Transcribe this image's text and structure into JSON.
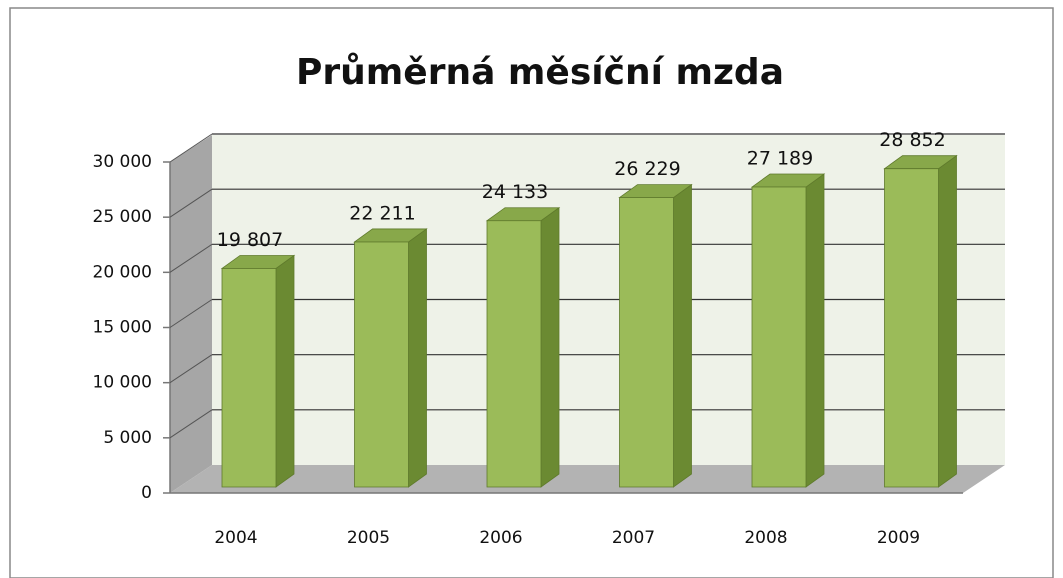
{
  "chart_data": {
    "type": "bar3d",
    "title": "Průměrná měsíční mzda",
    "categories": [
      "2004",
      "2005",
      "2006",
      "2007",
      "2008",
      "2009"
    ],
    "values": [
      19807,
      22211,
      24133,
      26229,
      27189,
      28852
    ],
    "value_labels": [
      "19 807",
      "22 211",
      "24 133",
      "26 229",
      "27 189",
      "28 852"
    ],
    "color": "#9bbb59",
    "ylim": [
      0,
      30000
    ],
    "yticks": [
      0,
      {
        "value": 5000,
        "label": "5 000"
      },
      {
        "value": 10000,
        "label": "10 000"
      },
      {
        "value": 15000,
        "label": "15 000"
      },
      {
        "value": 20000,
        "label": "20 000"
      },
      {
        "value": 25000,
        "label": "25 000"
      },
      {
        "value": 30000,
        "label": "30 000"
      }
    ],
    "grid": true
  }
}
